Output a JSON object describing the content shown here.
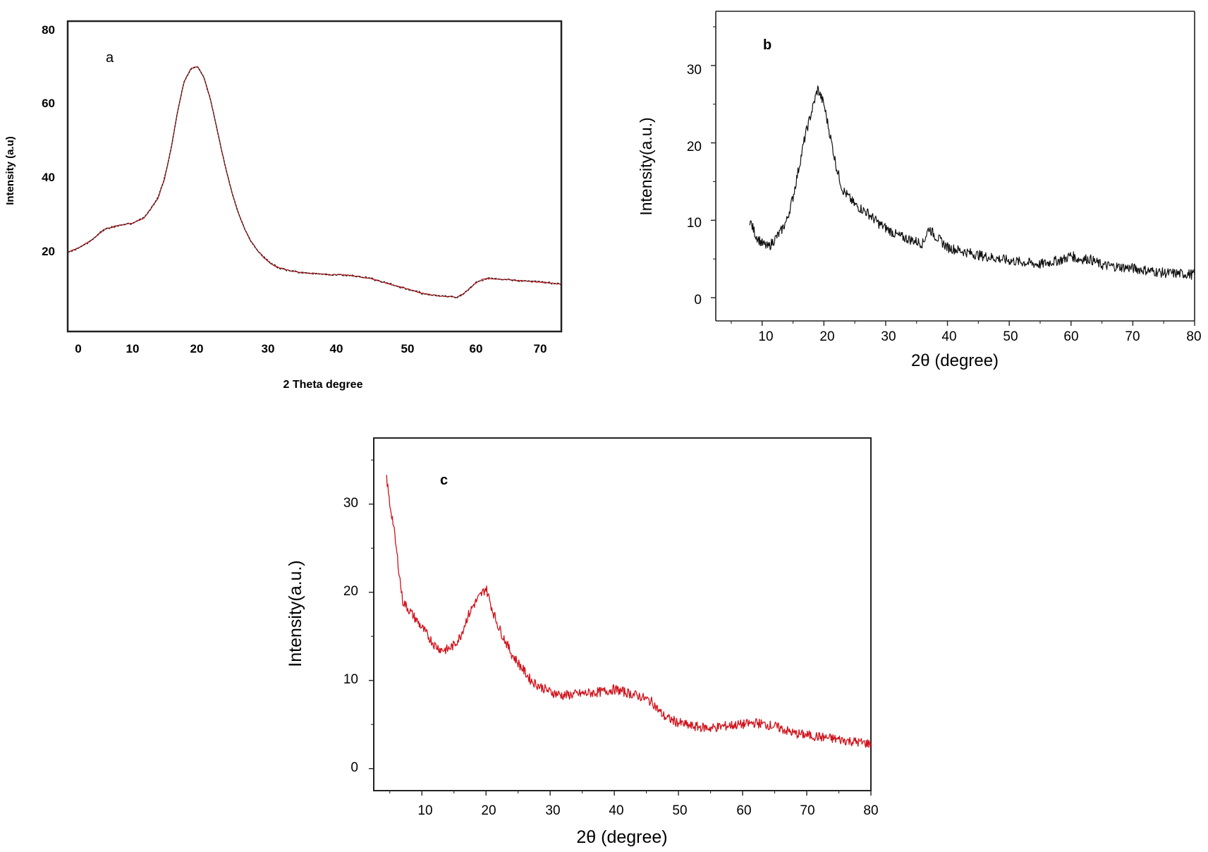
{
  "chart_data": [
    {
      "panel_label": "a",
      "type": "line",
      "xlabel": "2 Theta degree",
      "ylabel": "Intensity (a.u)",
      "xlim": [
        -1.5,
        72.7
      ],
      "ylim": [
        0,
        82
      ],
      "xticks": [
        0,
        10,
        20,
        30,
        40,
        50,
        60,
        70
      ],
      "yticks": [
        20,
        40,
        60,
        80
      ],
      "grid": false,
      "series": [
        {
          "color": "#c4161c",
          "overlay_color": "#1a1a1a",
          "x": [
            -1.5,
            0,
            2,
            4,
            6,
            8,
            10,
            12,
            13,
            14,
            15,
            16,
            17,
            18,
            19,
            20,
            21,
            22,
            23,
            24,
            25,
            26,
            27,
            28,
            29,
            30,
            32,
            34,
            36,
            38,
            40,
            42,
            44,
            46,
            48,
            50,
            52,
            54,
            56,
            57,
            58,
            59,
            60,
            61,
            62,
            64,
            66,
            68,
            70,
            72.7
          ],
          "y": [
            21,
            22,
            24,
            27,
            28,
            28.5,
            30,
            35,
            40,
            48,
            58,
            66,
            69.5,
            70,
            67,
            61,
            53,
            45,
            38,
            32,
            27.5,
            24,
            21.5,
            19.5,
            18,
            17,
            16,
            15.5,
            15.3,
            15,
            15,
            14.6,
            14,
            13,
            12,
            11,
            10,
            9.5,
            9.2,
            9,
            10,
            11.5,
            13,
            13.8,
            14,
            13.8,
            13.5,
            13.2,
            13,
            12.5
          ]
        }
      ]
    },
    {
      "panel_label": "b",
      "type": "line",
      "xlabel": "2θ (degree)",
      "ylabel": "Intensity(a.u.)",
      "xlim": [
        2.5,
        80
      ],
      "ylim": [
        -3,
        37
      ],
      "xticks": [
        10,
        20,
        30,
        40,
        50,
        60,
        70,
        80
      ],
      "yticks": [
        0,
        10,
        20,
        30
      ],
      "grid": false,
      "series": [
        {
          "color": "#111111",
          "x": [
            8,
            9,
            10,
            11,
            12,
            13,
            14,
            15,
            16,
            17,
            18,
            19,
            20,
            21,
            22,
            23,
            24,
            25,
            27,
            29,
            30,
            32,
            34,
            36,
            37,
            38,
            40,
            45,
            50,
            55,
            59,
            60,
            61,
            63,
            65,
            70,
            75,
            80
          ],
          "y": [
            10,
            8,
            7,
            6.5,
            7.5,
            8.5,
            10,
            13,
            17,
            21,
            24,
            27,
            25,
            21,
            17,
            14,
            13,
            12,
            11,
            9.5,
            9,
            8,
            7.5,
            7,
            9,
            8,
            6.5,
            5.5,
            4.8,
            4.3,
            5,
            5.5,
            5,
            5,
            4.2,
            3.8,
            3.2,
            3
          ]
        }
      ]
    },
    {
      "panel_label": "c",
      "type": "line",
      "xlabel": "2θ (degree)",
      "ylabel": "Intensity(a.u.)",
      "xlim": [
        2.5,
        80
      ],
      "ylim": [
        -2.5,
        37.5
      ],
      "xticks": [
        10,
        20,
        30,
        40,
        50,
        60,
        70,
        80
      ],
      "yticks": [
        0,
        10,
        20,
        30
      ],
      "grid": false,
      "series": [
        {
          "color": "#d0121b",
          "x": [
            4.5,
            5,
            5.5,
            6,
            6.5,
            7,
            8,
            9,
            10,
            11,
            12,
            13,
            14,
            15,
            16,
            17,
            18,
            19,
            20,
            21,
            22,
            23,
            24,
            25,
            26,
            27,
            28,
            30,
            32,
            35,
            38,
            40,
            42,
            44,
            46,
            47,
            48,
            50,
            52,
            55,
            58,
            60,
            62,
            65,
            68,
            70,
            73,
            76,
            78,
            80
          ],
          "y": [
            33,
            30,
            28,
            25,
            22,
            19,
            18,
            17,
            16,
            15,
            14,
            13.5,
            13.5,
            14,
            15,
            17,
            18.5,
            19.5,
            20.5,
            18,
            16,
            14.5,
            13,
            12,
            11,
            10,
            9.5,
            8.7,
            8.3,
            8.5,
            8.7,
            9,
            8.6,
            8.2,
            7.5,
            6.5,
            5.8,
            5.2,
            4.8,
            4.6,
            4.9,
            5,
            5.2,
            4.8,
            4,
            3.8,
            3.5,
            3.2,
            3,
            2.8
          ]
        }
      ]
    }
  ]
}
